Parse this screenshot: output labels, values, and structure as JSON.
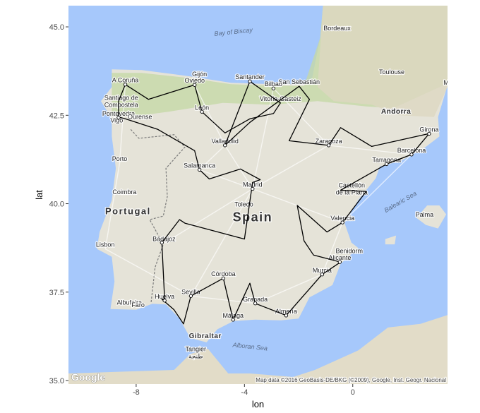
{
  "axes": {
    "xlabel": "lon",
    "ylabel": "lat",
    "xlim": [
      -10.5,
      3.5
    ],
    "ylim": [
      34.9,
      45.6
    ],
    "xticks": [
      {
        "value": -8,
        "label": "-8"
      },
      {
        "value": -4,
        "label": "-4"
      },
      {
        "value": 0,
        "label": "0"
      }
    ],
    "yticks": [
      {
        "value": 35.0,
        "label": "35.0"
      },
      {
        "value": 37.5,
        "label": "37.5"
      },
      {
        "value": 40.0,
        "label": "40.0"
      },
      {
        "value": 42.5,
        "label": "42.5"
      },
      {
        "value": 45.0,
        "label": "45.0"
      }
    ]
  },
  "map": {
    "attribution": "Map data ©2016 GeoBasis-DE/BKG (©2009), Google, Inst. Geogr. Nacional",
    "logo_text": "Google",
    "country_labels": [
      {
        "text": "Spain",
        "lon": -3.7,
        "lat": 39.5,
        "size": 18
      },
      {
        "text": "Portugal",
        "lon": -8.3,
        "lat": 39.7,
        "size": 13
      },
      {
        "text": "Andorra",
        "lon": 1.6,
        "lat": 42.55,
        "size": 10
      },
      {
        "text": "Gibraltar",
        "lon": -5.45,
        "lat": 36.2,
        "size": 10
      }
    ],
    "sea_labels": [
      {
        "text": "Bay of Biscay",
        "lon": -4.4,
        "lat": 44.8,
        "rotate": -6
      },
      {
        "text": "Alboran Sea",
        "lon": -3.8,
        "lat": 35.9,
        "rotate": 6
      },
      {
        "text": "Balearic Sea",
        "lon": 1.8,
        "lat": 40.0,
        "rotate": -30
      }
    ],
    "city_labels": [
      {
        "text": "A Coruña",
        "lon": -8.4,
        "lat": 43.37
      },
      {
        "text": "Santiago de",
        "lon": -8.55,
        "lat": 42.88
      },
      {
        "text": "Compostela",
        "lon": -8.55,
        "lat": 42.68
      },
      {
        "text": "Pontevedra",
        "lon": -8.65,
        "lat": 42.43
      },
      {
        "text": "Ourense",
        "lon": -7.86,
        "lat": 42.34
      },
      {
        "text": "Vigo",
        "lon": -8.72,
        "lat": 42.24
      },
      {
        "text": "Gijón",
        "lon": -5.66,
        "lat": 43.54
      },
      {
        "text": "Oviedo",
        "lon": -5.84,
        "lat": 43.36
      },
      {
        "text": "León",
        "lon": -5.57,
        "lat": 42.6
      },
      {
        "text": "Santander",
        "lon": -3.8,
        "lat": 43.46
      },
      {
        "text": "San Sebastián",
        "lon": -1.98,
        "lat": 43.32
      },
      {
        "text": "Bilbao",
        "lon": -2.93,
        "lat": 43.26
      },
      {
        "text": "Vitoria-Gasteiz",
        "lon": -2.67,
        "lat": 42.85
      },
      {
        "text": "Valladolid",
        "lon": -4.72,
        "lat": 41.65
      },
      {
        "text": "Zaragoza",
        "lon": -0.89,
        "lat": 41.65
      },
      {
        "text": "Porto",
        "lon": -8.61,
        "lat": 41.15
      },
      {
        "text": "Salamanca",
        "lon": -5.66,
        "lat": 40.96
      },
      {
        "text": "Madrid",
        "lon": -3.7,
        "lat": 40.42
      },
      {
        "text": "Toledo",
        "lon": -4.02,
        "lat": 39.86
      },
      {
        "text": "Coimbra",
        "lon": -8.43,
        "lat": 40.21
      },
      {
        "text": "Castellón",
        "lon": -0.04,
        "lat": 40.4
      },
      {
        "text": "de la Plana",
        "lon": -0.04,
        "lat": 40.2
      },
      {
        "text": "Valencia",
        "lon": -0.38,
        "lat": 39.47
      },
      {
        "text": "Lisbon",
        "lon": -9.14,
        "lat": 38.72
      },
      {
        "text": "Badajoz",
        "lon": -6.97,
        "lat": 38.88
      },
      {
        "text": "Córdoba",
        "lon": -4.78,
        "lat": 37.89
      },
      {
        "text": "Sevilla",
        "lon": -5.98,
        "lat": 37.39
      },
      {
        "text": "Huelva",
        "lon": -6.95,
        "lat": 37.26
      },
      {
        "text": "Granada",
        "lon": -3.6,
        "lat": 37.18
      },
      {
        "text": "Málaga",
        "lon": -4.42,
        "lat": 36.72
      },
      {
        "text": "Almería",
        "lon": -2.46,
        "lat": 36.84
      },
      {
        "text": "Murcia",
        "lon": -1.13,
        "lat": 37.99
      },
      {
        "text": "Alicante",
        "lon": -0.48,
        "lat": 38.35
      },
      {
        "text": "Benidorm",
        "lon": -0.13,
        "lat": 38.54
      },
      {
        "text": "Albufeira",
        "lon": -8.25,
        "lat": 37.09
      },
      {
        "text": "Faro",
        "lon": -7.93,
        "lat": 37.02
      },
      {
        "text": "Tangier",
        "lon": -5.8,
        "lat": 35.77
      },
      {
        "text": "طنجة",
        "lon": -5.8,
        "lat": 35.57
      },
      {
        "text": "Bordeaux",
        "lon": -0.58,
        "lat": 44.84
      },
      {
        "text": "Toulouse",
        "lon": 1.44,
        "lat": 43.6
      },
      {
        "text": "Andorra",
        "lon": 1.52,
        "lat": 42.51
      },
      {
        "text": "Girona",
        "lon": 2.82,
        "lat": 41.98
      },
      {
        "text": "Barcelona",
        "lon": 2.17,
        "lat": 41.39
      },
      {
        "text": "Tarragona",
        "lon": 1.25,
        "lat": 41.12
      },
      {
        "text": "Palma",
        "lon": 2.65,
        "lat": 39.57
      },
      {
        "text": "M",
        "lon": 3.45,
        "lat": 43.3
      }
    ]
  },
  "chart_data": {
    "type": "path",
    "x": [
      -8.4,
      -7.55,
      -5.84,
      -5.57,
      -4.72,
      -3.8,
      -2.93,
      -2.67,
      -3.8,
      -4.72,
      -3.8,
      -1.98,
      -1.6,
      -2.35,
      -0.89,
      -0.45,
      0.7,
      2.82,
      2.17,
      1.25,
      -0.45,
      0.5,
      -0.38,
      -0.95,
      -2.05,
      -1.8,
      -1.45,
      -0.45,
      -1.13,
      -2.46,
      -3.6,
      -3.8,
      -4.42,
      -4.78,
      -5.98,
      -6.25,
      -6.6,
      -7.05,
      -6.95,
      -7.05,
      -6.4,
      -6.2,
      -4.0,
      -3.7,
      -3.42,
      -4.15,
      -5.3,
      -5.66,
      -5.84,
      -7.2,
      -8.4,
      -8.65,
      -8.65,
      -8.4
    ],
    "y": [
      43.37,
      42.95,
      43.36,
      42.6,
      42.0,
      42.4,
      42.55,
      42.85,
      43.46,
      41.65,
      42.3,
      43.32,
      42.95,
      41.78,
      41.65,
      42.15,
      41.62,
      41.98,
      41.39,
      41.12,
      40.38,
      40.35,
      39.47,
      39.2,
      39.95,
      38.95,
      38.55,
      38.35,
      38.0,
      36.84,
      37.18,
      37.75,
      36.72,
      37.89,
      37.39,
      36.6,
      37.0,
      37.3,
      37.3,
      38.9,
      39.55,
      39.45,
      39.0,
      40.6,
      40.68,
      40.98,
      40.7,
      40.96,
      41.5,
      42.1,
      42.4,
      42.45,
      42.9,
      43.37
    ],
    "stops": [
      {
        "lon": -8.4,
        "lat": 43.37
      },
      {
        "lon": -5.84,
        "lat": 43.36
      },
      {
        "lon": -5.57,
        "lat": 42.6
      },
      {
        "lon": -4.72,
        "lat": 41.65
      },
      {
        "lon": -3.8,
        "lat": 43.46
      },
      {
        "lon": -2.93,
        "lat": 43.26
      },
      {
        "lon": -0.89,
        "lat": 41.65
      },
      {
        "lon": 2.82,
        "lat": 41.98
      },
      {
        "lon": 2.17,
        "lat": 41.39
      },
      {
        "lon": 1.25,
        "lat": 41.12
      },
      {
        "lon": -0.38,
        "lat": 39.47
      },
      {
        "lon": -0.48,
        "lat": 38.35
      },
      {
        "lon": -1.13,
        "lat": 38.0
      },
      {
        "lon": -2.46,
        "lat": 36.84
      },
      {
        "lon": -3.6,
        "lat": 37.18
      },
      {
        "lon": -4.42,
        "lat": 36.72
      },
      {
        "lon": -4.78,
        "lat": 37.89
      },
      {
        "lon": -5.98,
        "lat": 37.39
      },
      {
        "lon": -6.95,
        "lat": 37.26
      },
      {
        "lon": -7.05,
        "lat": 38.9
      },
      {
        "lon": -3.7,
        "lat": 40.42
      },
      {
        "lon": -5.66,
        "lat": 40.96
      },
      {
        "lon": -8.65,
        "lat": 42.43
      }
    ]
  },
  "colors": {
    "sea": "#a6c8fb",
    "land": "#e5e3d8",
    "land_green": "#c6d8a8",
    "africa": "#e2dcc8",
    "route": "#000000",
    "road": "#ffffff",
    "border": "#7a7a7a"
  }
}
